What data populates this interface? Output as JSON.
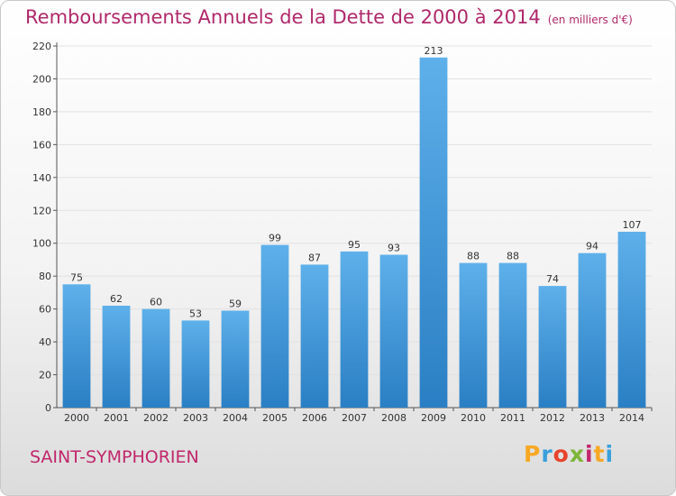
{
  "header": {
    "title": "Remboursements Annuels de la Dette de 2000 à 2014",
    "unit": "(en milliers d'€)"
  },
  "footer": {
    "commune": "SAINT-SYMPHORIEN",
    "logo_text": "Proxiti",
    "logo_colors": [
      "#f7a823",
      "#3aa0dc",
      "#e8432c",
      "#7cb638",
      "#c1276b",
      "#f7a823",
      "#3aa0dc"
    ]
  },
  "chart_data": {
    "type": "bar",
    "categories": [
      "2000",
      "2001",
      "2002",
      "2003",
      "2004",
      "2005",
      "2006",
      "2007",
      "2008",
      "2009",
      "2010",
      "2011",
      "2012",
      "2013",
      "2014"
    ],
    "values": [
      75,
      62,
      60,
      53,
      59,
      99,
      87,
      95,
      93,
      213,
      88,
      88,
      74,
      94,
      107
    ],
    "title": "Remboursements Annuels de la Dette de 2000 à 2014",
    "ylim": [
      0,
      220
    ],
    "yticks": [
      0,
      20,
      40,
      60,
      80,
      100,
      120,
      140,
      160,
      180,
      200,
      220
    ],
    "grid": true,
    "bar_color": "#3d95d8"
  }
}
